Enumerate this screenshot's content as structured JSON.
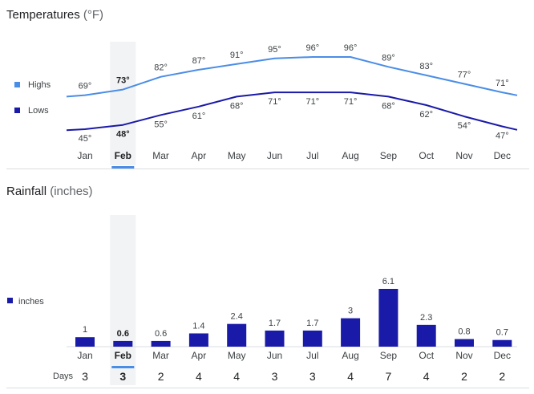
{
  "temperature": {
    "title": "Temperatures",
    "unit": "(°F)",
    "legend": [
      {
        "name": "Highs",
        "color": "#4a8de6"
      },
      {
        "name": "Lows",
        "color": "#1a1aa8"
      }
    ]
  },
  "rainfall": {
    "title": "Rainfall",
    "unit": "(inches)",
    "legend": [
      {
        "name": "inches",
        "color": "#1a1aa8"
      }
    ]
  },
  "days_label": "Days",
  "selected_month": "Feb",
  "chart_data": [
    {
      "type": "line",
      "title": "Temperatures (°F)",
      "categories": [
        "Jan",
        "Feb",
        "Mar",
        "Apr",
        "May",
        "Jun",
        "Jul",
        "Aug",
        "Sep",
        "Oct",
        "Nov",
        "Dec"
      ],
      "series": [
        {
          "name": "Highs",
          "color": "#4a8de6",
          "values": [
            69,
            73,
            82,
            87,
            91,
            95,
            96,
            96,
            89,
            83,
            77,
            71
          ],
          "labels": [
            "69°",
            "73°",
            "82°",
            "87°",
            "91°",
            "95°",
            "96°",
            "96°",
            "89°",
            "83°",
            "77°",
            "71°"
          ]
        },
        {
          "name": "Lows",
          "color": "#1a1aa8",
          "values": [
            45,
            48,
            55,
            61,
            68,
            71,
            71,
            71,
            68,
            62,
            54,
            47
          ],
          "labels": [
            "45°",
            "48°",
            "55°",
            "61°",
            "68°",
            "71°",
            "71°",
            "71°",
            "68°",
            "62°",
            "54°",
            "47°"
          ]
        }
      ],
      "legend": "left",
      "grid": false
    },
    {
      "type": "bar",
      "title": "Rainfall (inches)",
      "categories": [
        "Jan",
        "Feb",
        "Mar",
        "Apr",
        "May",
        "Jun",
        "Jul",
        "Aug",
        "Sep",
        "Oct",
        "Nov",
        "Dec"
      ],
      "series": [
        {
          "name": "inches",
          "color": "#1a1aa8",
          "values": [
            1,
            0.6,
            0.6,
            1.4,
            2.4,
            1.7,
            1.7,
            3,
            6.1,
            2.3,
            0.8,
            0.7
          ],
          "labels": [
            "1",
            "0.6",
            "0.6",
            "1.4",
            "2.4",
            "1.7",
            "1.7",
            "3",
            "6.1",
            "2.3",
            "0.8",
            "0.7"
          ]
        }
      ],
      "days": [
        3,
        3,
        2,
        4,
        4,
        3,
        3,
        4,
        7,
        4,
        2,
        2
      ],
      "legend": "left",
      "grid": false
    }
  ]
}
